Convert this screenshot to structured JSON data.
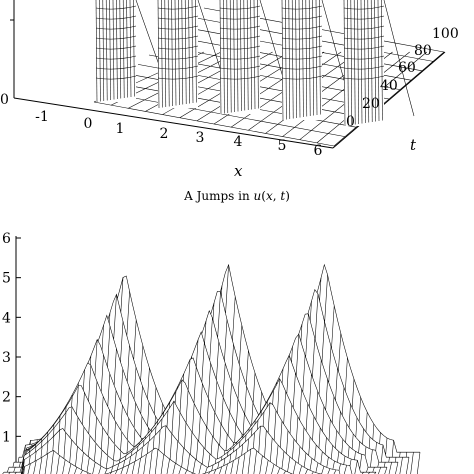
{
  "caption": "A  Jumps in u(x,t)",
  "chart_data": [
    {
      "type": "surface",
      "panel": "A",
      "title": "",
      "xlabel": "x",
      "ylabel": "t",
      "zlabel": "",
      "x_ticks": [
        "-1",
        "0",
        "1",
        "2",
        "3",
        "4",
        "5",
        "6"
      ],
      "t_ticks": [
        "0",
        "20",
        "40",
        "60",
        "80",
        "100"
      ],
      "z_ticks": [
        "0"
      ],
      "xlim": [
        -1.5,
        6
      ],
      "tlim": [
        0,
        100
      ],
      "jumps_at_x": [
        1,
        2,
        3,
        4,
        5
      ],
      "grid": false
    },
    {
      "type": "surface",
      "panel": "B",
      "title": "",
      "xlabel": "",
      "ylabel": "",
      "zlabel": "",
      "z_ticks": [
        "1",
        "2",
        "3",
        "4",
        "5",
        "6"
      ],
      "zlim": [
        0,
        6
      ],
      "peaks": [
        {
          "height": 5.2
        },
        {
          "height": 5.4
        },
        {
          "height": 5.4
        }
      ],
      "grid": false
    }
  ]
}
